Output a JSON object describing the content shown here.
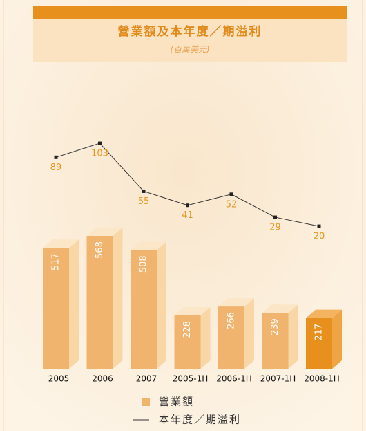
{
  "chart_data": {
    "type": "bar",
    "title": "營業額及本年度／期溢利",
    "subtitle": "(百萬美元)",
    "categories": [
      "2005",
      "2006",
      "2007",
      "2005-1H",
      "2006-1H",
      "2007-1H",
      "2008-1H"
    ],
    "series": [
      {
        "name": "營業額",
        "type": "bar",
        "color": "#f1b46f",
        "colors": [
          "#f1b46f",
          "#f1b46f",
          "#f1b46f",
          "#f1b46f",
          "#f1b46f",
          "#f1b46f",
          "#e8901e"
        ],
        "values": [
          517,
          568,
          508,
          228,
          266,
          239,
          217
        ]
      },
      {
        "name": "本年度／期溢利",
        "type": "line",
        "axis": "y2",
        "color": "#333333",
        "values": [
          89,
          103,
          55,
          41,
          52,
          29,
          20
        ]
      }
    ]
  }
}
